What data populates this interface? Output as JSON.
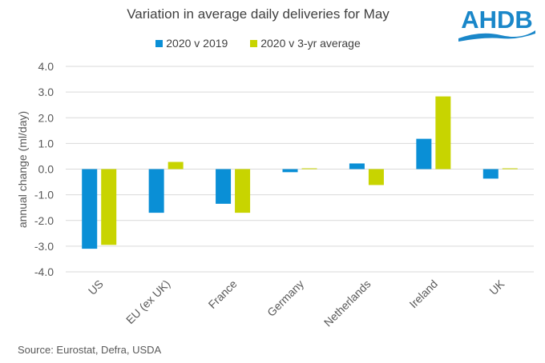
{
  "logo": {
    "text": "AHDB",
    "color": "#1a87c9"
  },
  "source": "Source: Eurostat, Defra, USDA",
  "chart_data": {
    "type": "bar",
    "title": "Variation in average daily deliveries for May",
    "xlabel": "",
    "ylabel": "annual change (ml/day)",
    "ylim": [
      -4.0,
      4.0
    ],
    "yticks": [
      4.0,
      3.0,
      2.0,
      1.0,
      0.0,
      -1.0,
      -2.0,
      -3.0,
      -4.0
    ],
    "ytick_labels": [
      "4.0",
      "3.0",
      "2.0",
      "1.0",
      "0.0",
      "-1.0",
      "-2.0",
      "-3.0",
      "-4.0"
    ],
    "grid": true,
    "legend_position": "top-center",
    "categories": [
      "US",
      "EU (ex UK)",
      "France",
      "Germany",
      "Netherlands",
      "Ireland",
      "UK"
    ],
    "series": [
      {
        "name": "2020 v 2019",
        "color": "#0a8fd6",
        "values": [
          -3.1,
          -1.7,
          -1.35,
          -0.12,
          0.22,
          1.18,
          -0.37
        ]
      },
      {
        "name": "2020 v 3-yr average",
        "color": "#c8d400",
        "values": [
          -2.95,
          0.28,
          -1.7,
          0.03,
          -0.62,
          2.83,
          0.03
        ]
      }
    ]
  }
}
